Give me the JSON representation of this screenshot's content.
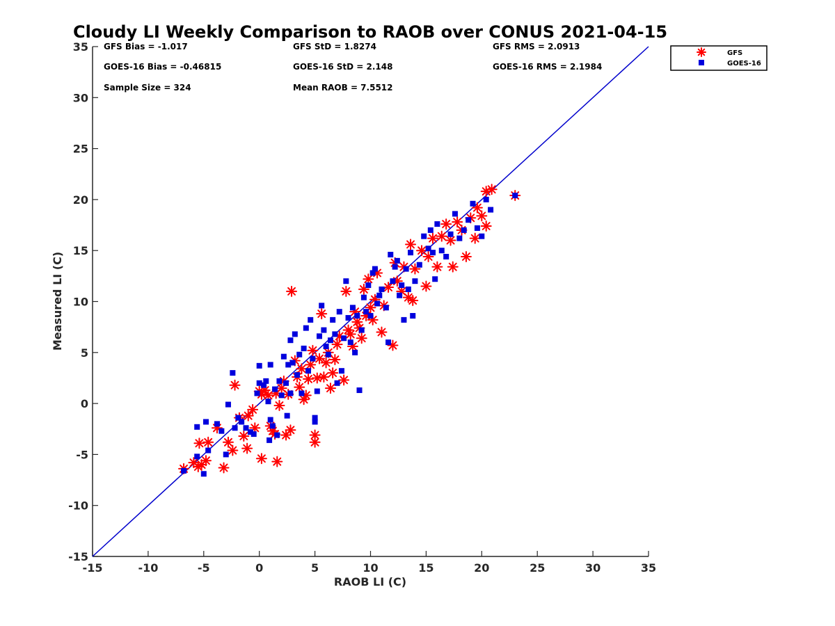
{
  "chart_data": {
    "type": "scatter",
    "title": "Cloudy LI Weekly Comparison to RAOB over CONUS 2021-04-15",
    "xlabel": "RAOB LI (C)",
    "ylabel": "Measured LI (C)",
    "xlim": [
      -15,
      35
    ],
    "ylim": [
      -15,
      35
    ],
    "xticks": [
      -15,
      -10,
      -5,
      0,
      5,
      10,
      15,
      20,
      25,
      30,
      35
    ],
    "yticks": [
      -15,
      -10,
      -5,
      0,
      5,
      10,
      15,
      20,
      25,
      30,
      35
    ],
    "grid": false,
    "legend": {
      "placement": "top-right-outside"
    },
    "stats": [
      [
        "GFS Bias = -1.017",
        "GFS StD = 1.8274",
        "GFS RMS = 2.0913"
      ],
      [
        "GOES-16 Bias = -0.46815",
        "GOES-16 StD = 2.148",
        "GOES-16 RMS = 2.1984"
      ],
      [
        "Sample Size = 324",
        "Mean RAOB = 7.5512",
        ""
      ]
    ],
    "reference_line": {
      "type": "one-to-one",
      "from": [
        -15,
        -15
      ],
      "to": [
        35,
        35
      ],
      "color": "#0000cc"
    },
    "series": [
      {
        "name": "GFS",
        "marker": "asterisk",
        "color": "#ff0000",
        "points": [
          [
            -6.8,
            -6.4
          ],
          [
            -5.9,
            -5.8
          ],
          [
            -5.5,
            -6.2
          ],
          [
            -5.2,
            -6.0
          ],
          [
            -4.8,
            -5.6
          ],
          [
            -4.6,
            -3.8
          ],
          [
            -5.4,
            -3.9
          ],
          [
            -3.8,
            -2.4
          ],
          [
            -3.2,
            -6.3
          ],
          [
            -2.8,
            -3.8
          ],
          [
            -2.4,
            -4.6
          ],
          [
            -1.8,
            -1.4
          ],
          [
            -1.4,
            -3.2
          ],
          [
            -1.1,
            -4.4
          ],
          [
            -1.0,
            -1.2
          ],
          [
            -0.6,
            -0.6
          ],
          [
            -2.2,
            1.8
          ],
          [
            -0.4,
            -2.4
          ],
          [
            0.2,
            -5.4
          ],
          [
            0.0,
            1.2
          ],
          [
            0.2,
            0.9
          ],
          [
            0.5,
            1.3
          ],
          [
            0.8,
            0.8
          ],
          [
            1.0,
            -2.2
          ],
          [
            1.2,
            -2.7
          ],
          [
            1.4,
            -3.0
          ],
          [
            1.6,
            -5.7
          ],
          [
            1.8,
            -0.2
          ],
          [
            1.5,
            1.0
          ],
          [
            2.0,
            1.5
          ],
          [
            2.2,
            2.2
          ],
          [
            2.4,
            -3.1
          ],
          [
            2.6,
            0.9
          ],
          [
            2.8,
            -2.6
          ],
          [
            2.9,
            11.0
          ],
          [
            3.2,
            4.2
          ],
          [
            3.4,
            2.6
          ],
          [
            3.6,
            1.6
          ],
          [
            3.8,
            3.4
          ],
          [
            4.0,
            0.4
          ],
          [
            4.2,
            0.8
          ],
          [
            4.4,
            2.4
          ],
          [
            4.6,
            3.8
          ],
          [
            4.8,
            5.2
          ],
          [
            5.0,
            -3.1
          ],
          [
            5.0,
            -3.8
          ],
          [
            5.2,
            2.5
          ],
          [
            5.4,
            4.4
          ],
          [
            5.6,
            8.8
          ],
          [
            5.8,
            2.6
          ],
          [
            6.0,
            4.0
          ],
          [
            6.2,
            5.0
          ],
          [
            6.4,
            1.5
          ],
          [
            6.6,
            3.0
          ],
          [
            6.8,
            4.3
          ],
          [
            7.0,
            5.8
          ],
          [
            7.2,
            6.6
          ],
          [
            7.6,
            2.3
          ],
          [
            7.8,
            11.0
          ],
          [
            8.0,
            7.2
          ],
          [
            8.2,
            6.8
          ],
          [
            8.4,
            5.6
          ],
          [
            8.6,
            9.0
          ],
          [
            8.8,
            8.0
          ],
          [
            9.0,
            7.4
          ],
          [
            9.2,
            6.4
          ],
          [
            9.4,
            11.2
          ],
          [
            9.6,
            8.6
          ],
          [
            9.8,
            12.2
          ],
          [
            10.0,
            9.4
          ],
          [
            10.2,
            8.2
          ],
          [
            10.4,
            10.2
          ],
          [
            10.6,
            12.8
          ],
          [
            11.0,
            7.0
          ],
          [
            11.2,
            9.6
          ],
          [
            11.6,
            11.4
          ],
          [
            12.0,
            5.7
          ],
          [
            12.2,
            13.8
          ],
          [
            12.4,
            12.0
          ],
          [
            12.8,
            11.0
          ],
          [
            13.0,
            13.4
          ],
          [
            13.4,
            10.4
          ],
          [
            13.6,
            15.6
          ],
          [
            13.8,
            10.1
          ],
          [
            14.0,
            13.2
          ],
          [
            14.6,
            15.0
          ],
          [
            15.0,
            11.5
          ],
          [
            15.2,
            14.4
          ],
          [
            15.6,
            16.2
          ],
          [
            16.0,
            13.4
          ],
          [
            16.4,
            16.4
          ],
          [
            16.8,
            17.6
          ],
          [
            17.2,
            16.0
          ],
          [
            17.4,
            13.4
          ],
          [
            17.8,
            17.8
          ],
          [
            18.2,
            17.0
          ],
          [
            18.6,
            14.4
          ],
          [
            19.0,
            18.2
          ],
          [
            19.4,
            16.2
          ],
          [
            19.6,
            19.2
          ],
          [
            20.0,
            18.4
          ],
          [
            20.4,
            17.4
          ],
          [
            20.4,
            20.8
          ],
          [
            20.9,
            21.0
          ],
          [
            23.0,
            20.4
          ]
        ]
      },
      {
        "name": "GOES-16",
        "marker": "square",
        "color": "#0000dd",
        "points": [
          [
            -6.8,
            -6.6
          ],
          [
            -5.6,
            -5.2
          ],
          [
            -5.6,
            -2.3
          ],
          [
            -5.0,
            -6.9
          ],
          [
            -4.8,
            -1.8
          ],
          [
            -4.6,
            -4.6
          ],
          [
            -3.8,
            -2.0
          ],
          [
            -3.4,
            -2.7
          ],
          [
            -3.0,
            -5.0
          ],
          [
            -2.8,
            -0.1
          ],
          [
            -2.4,
            3.0
          ],
          [
            -2.2,
            -2.4
          ],
          [
            -1.9,
            -1.4
          ],
          [
            -1.6,
            -1.8
          ],
          [
            -1.2,
            -2.4
          ],
          [
            -0.8,
            -2.8
          ],
          [
            -0.5,
            -3.0
          ],
          [
            -0.2,
            1.0
          ],
          [
            0.0,
            2.0
          ],
          [
            0.0,
            3.7
          ],
          [
            0.4,
            1.8
          ],
          [
            0.6,
            2.2
          ],
          [
            0.8,
            0.2
          ],
          [
            0.9,
            -3.6
          ],
          [
            1.0,
            -1.6
          ],
          [
            1.2,
            -2.2
          ],
          [
            1.0,
            3.8
          ],
          [
            1.4,
            1.4
          ],
          [
            1.6,
            -3.1
          ],
          [
            1.8,
            2.2
          ],
          [
            2.0,
            0.8
          ],
          [
            2.2,
            4.6
          ],
          [
            2.4,
            2.0
          ],
          [
            2.5,
            -1.2
          ],
          [
            2.6,
            3.8
          ],
          [
            2.8,
            1.0
          ],
          [
            2.8,
            6.2
          ],
          [
            3.0,
            4.0
          ],
          [
            3.2,
            6.8
          ],
          [
            3.4,
            2.8
          ],
          [
            3.6,
            4.8
          ],
          [
            3.8,
            1.0
          ],
          [
            4.0,
            5.4
          ],
          [
            4.2,
            7.4
          ],
          [
            4.4,
            3.2
          ],
          [
            4.6,
            8.2
          ],
          [
            4.8,
            4.4
          ],
          [
            5.0,
            -1.4
          ],
          [
            5.0,
            -1.8
          ],
          [
            5.2,
            1.2
          ],
          [
            5.4,
            6.6
          ],
          [
            5.6,
            9.6
          ],
          [
            5.8,
            7.2
          ],
          [
            6.0,
            5.6
          ],
          [
            6.2,
            4.8
          ],
          [
            6.4,
            6.2
          ],
          [
            6.6,
            8.2
          ],
          [
            6.8,
            6.8
          ],
          [
            7.0,
            2.0
          ],
          [
            7.2,
            9.0
          ],
          [
            7.4,
            3.2
          ],
          [
            7.6,
            6.4
          ],
          [
            7.8,
            12.0
          ],
          [
            8.0,
            8.4
          ],
          [
            8.2,
            6.0
          ],
          [
            8.4,
            9.4
          ],
          [
            8.6,
            5.0
          ],
          [
            8.8,
            8.6
          ],
          [
            9.0,
            1.3
          ],
          [
            9.2,
            7.2
          ],
          [
            9.4,
            10.4
          ],
          [
            9.6,
            9.0
          ],
          [
            9.8,
            11.6
          ],
          [
            10.0,
            8.6
          ],
          [
            10.2,
            12.8
          ],
          [
            10.4,
            13.2
          ],
          [
            10.6,
            9.8
          ],
          [
            10.8,
            10.6
          ],
          [
            11.0,
            11.2
          ],
          [
            11.4,
            9.4
          ],
          [
            11.6,
            6.0
          ],
          [
            11.8,
            14.6
          ],
          [
            12.0,
            12.0
          ],
          [
            12.2,
            13.4
          ],
          [
            12.4,
            14.0
          ],
          [
            12.6,
            10.6
          ],
          [
            12.8,
            11.6
          ],
          [
            13.0,
            8.2
          ],
          [
            13.2,
            13.2
          ],
          [
            13.4,
            11.2
          ],
          [
            13.6,
            14.8
          ],
          [
            13.8,
            8.6
          ],
          [
            14.0,
            12.0
          ],
          [
            14.4,
            13.6
          ],
          [
            14.8,
            16.4
          ],
          [
            15.2,
            15.2
          ],
          [
            15.4,
            17.0
          ],
          [
            15.6,
            14.8
          ],
          [
            15.8,
            12.2
          ],
          [
            16.0,
            17.6
          ],
          [
            16.4,
            15.0
          ],
          [
            16.8,
            14.4
          ],
          [
            17.2,
            16.6
          ],
          [
            17.6,
            18.6
          ],
          [
            18.0,
            16.2
          ],
          [
            18.4,
            17.0
          ],
          [
            18.8,
            18.0
          ],
          [
            19.2,
            19.6
          ],
          [
            19.6,
            17.2
          ],
          [
            20.0,
            16.4
          ],
          [
            20.4,
            20.0
          ],
          [
            20.8,
            19.0
          ],
          [
            23.0,
            20.4
          ]
        ]
      }
    ]
  }
}
